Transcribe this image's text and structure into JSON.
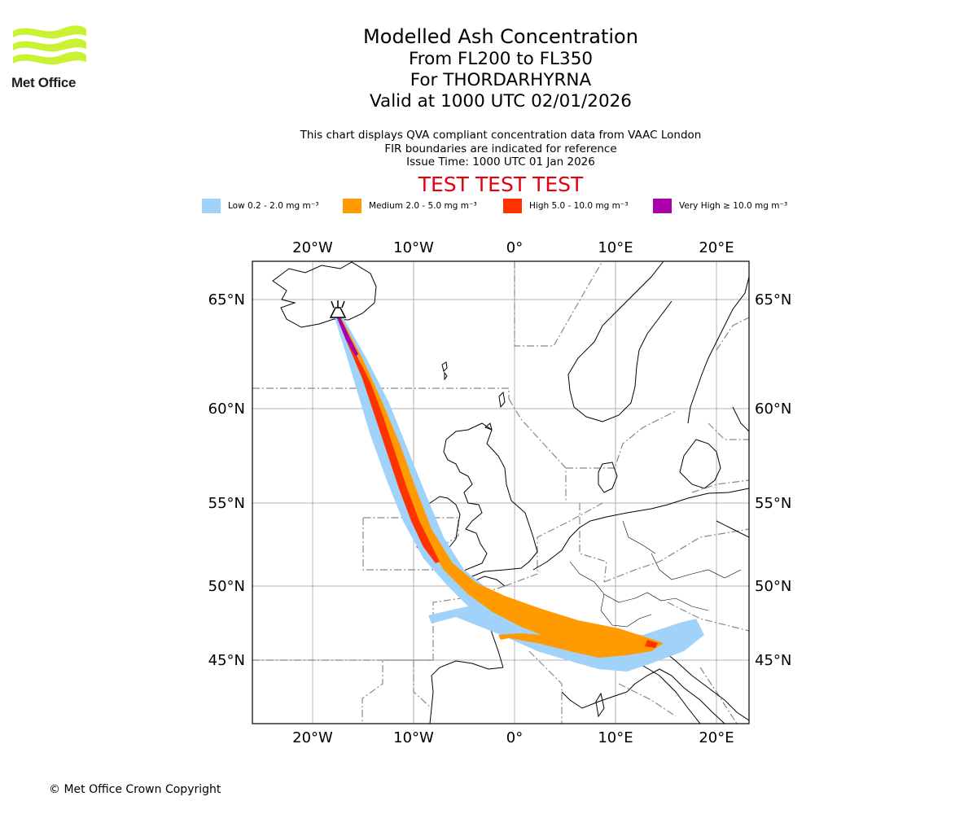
{
  "header": {
    "title": "Modelled Ash Concentration",
    "levels": "From FL200 to FL350",
    "volcano": "For THORDARHYRNA",
    "valid": "Valid at 1000 UTC 02/01/2026",
    "info_line1": "This chart displays QVA compliant concentration data from VAAC London",
    "info_line2": "FIR boundaries are indicated for reference",
    "info_line3": "Issue Time: 1000 UTC 01 Jan 2026",
    "test_banner": "TEST TEST TEST"
  },
  "logo": {
    "text": "Met Office",
    "color": "#c8f232"
  },
  "legend": [
    {
      "label": "Low 0.2 - 2.0 mg m⁻³",
      "color": "#a0d2fa"
    },
    {
      "label": "Medium 2.0 - 5.0 mg m⁻³",
      "color": "#ff9a00"
    },
    {
      "label": "High 5.0 - 10.0 mg m⁻³",
      "color": "#ff3300"
    },
    {
      "label": "Very High ≥ 10.0 mg m⁻³",
      "color": "#aa00aa"
    }
  ],
  "map": {
    "lon_labels": [
      "20°W",
      "10°W",
      "0°",
      "10°E",
      "20°E"
    ],
    "lat_labels": [
      "65°N",
      "60°N",
      "55°N",
      "50°N",
      "45°N"
    ]
  },
  "footer": {
    "copyright": "© Met Office Crown Copyright"
  }
}
